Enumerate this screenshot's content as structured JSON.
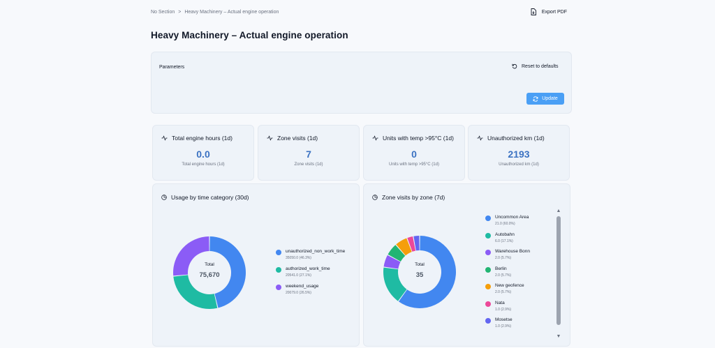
{
  "breadcrumb": {
    "items": [
      "No Section",
      "Heavy Machinery – Actual engine operation"
    ],
    "separator": ">"
  },
  "export": {
    "label": "Export PDF",
    "icon": "file-export-icon"
  },
  "page": {
    "title": "Heavy Machinery – Actual engine operation"
  },
  "parameters": {
    "title": "Parameters",
    "reset_label": "Reset to defaults",
    "update_label": "Update"
  },
  "kpis": [
    {
      "title": "Total engine hours (1d)",
      "value": "0.0",
      "subtitle": "Total engine hours (1d)",
      "icon": "activity-icon"
    },
    {
      "title": "Zone visits (1d)",
      "value": "7",
      "subtitle": "Zone visits (1d)",
      "icon": "activity-icon"
    },
    {
      "title": "Units with temp >95°C (1d)",
      "value": "0",
      "subtitle": "Units with temp >95°C (1d)",
      "icon": "activity-icon"
    },
    {
      "title": "Unauthorized km (1d)",
      "value": "2193",
      "subtitle": "Unauthorized km (1d)",
      "icon": "activity-icon"
    }
  ],
  "chart_data": [
    {
      "type": "pie",
      "title": "Usage by time category (30d)",
      "center_label": "Total",
      "center_value": "75,670",
      "slices": [
        {
          "name": "unauthorized_non_work_time",
          "value": 35050.0,
          "detail": "35050.0 (46.3%)",
          "color": "#4287f0"
        },
        {
          "name": "authorized_work_time",
          "value": 20541.0,
          "detail": "20541.0 (27.1%)",
          "color": "#1fbba3"
        },
        {
          "name": "weekend_usage",
          "value": 20079.0,
          "detail": "20079.0 (26.5%)",
          "color": "#8b5cf6"
        }
      ]
    },
    {
      "type": "pie",
      "title": "Zone visits by zone (7d)",
      "center_label": "Total",
      "center_value": "35",
      "slices": [
        {
          "name": "Uncommon Area",
          "value": 21.0,
          "detail": "21.0 (60.0%)",
          "color": "#4287f0"
        },
        {
          "name": "Autobahn",
          "value": 6.0,
          "detail": "6.0 (17.1%)",
          "color": "#1fbba3"
        },
        {
          "name": "Warehouse Bonn",
          "value": 2.0,
          "detail": "2.0 (5.7%)",
          "color": "#8b5cf6"
        },
        {
          "name": "Berlin",
          "value": 2.0,
          "detail": "2.0 (5.7%)",
          "color": "#22b573"
        },
        {
          "name": "New geofence",
          "value": 2.0,
          "detail": "2.0 (5.7%)",
          "color": "#f59e0b"
        },
        {
          "name": "Nata",
          "value": 1.0,
          "detail": "1.0 (2.9%)",
          "color": "#ec4899"
        },
        {
          "name": "Mosetse",
          "value": 1.0,
          "detail": "1.0 (2.9%)",
          "color": "#6366f1"
        }
      ]
    }
  ]
}
